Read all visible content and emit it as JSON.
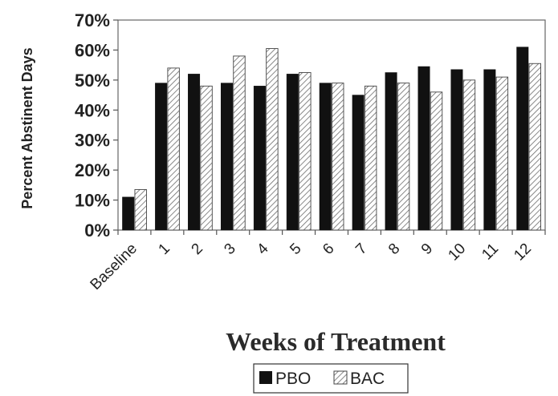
{
  "chart_data": {
    "type": "bar",
    "xlabel": "Weeks of Treatment",
    "ylabel": "Percent Abstinent Days",
    "categories": [
      "Baseline",
      "1",
      "2",
      "3",
      "4",
      "5",
      "6",
      "7",
      "8",
      "9",
      "10",
      "11",
      "12"
    ],
    "ylim": [
      0,
      70
    ],
    "yticks": [
      "0%",
      "10%",
      "20%",
      "30%",
      "40%",
      "50%",
      "60%",
      "70%"
    ],
    "y_unit": "%",
    "grid": false,
    "legend_position": "bottom-center",
    "series": [
      {
        "name": "PBO",
        "pattern": "solid",
        "color": "#111111",
        "values": [
          11,
          49,
          52,
          49,
          48,
          52,
          49,
          45,
          52.5,
          54.5,
          53.5,
          53.5,
          61
        ]
      },
      {
        "name": "BAC",
        "pattern": "diagonal-hatch",
        "color": "#888888",
        "values": [
          13.5,
          54,
          48,
          58,
          60.5,
          52.5,
          49,
          48,
          49,
          46,
          50,
          51,
          55.5
        ]
      }
    ]
  }
}
